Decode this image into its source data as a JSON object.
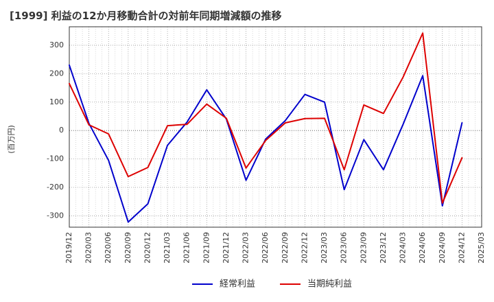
{
  "chart_data": {
    "type": "line",
    "title": "[1999]  利益の12か月移動合計の対前年同期増減額の推移",
    "xlabel": "",
    "ylabel": "(百万円)",
    "ylim": [
      -340,
      365
    ],
    "yticks": [
      -300,
      -200,
      -100,
      0,
      100,
      200,
      300
    ],
    "grid": true,
    "legend_position": "bottom-center",
    "x": [
      "2019/12",
      "2020/03",
      "2020/06",
      "2020/09",
      "2020/12",
      "2021/03",
      "2021/06",
      "2021/09",
      "2021/12",
      "2022/03",
      "2022/06",
      "2022/09",
      "2022/12",
      "2023/03",
      "2023/06",
      "2023/09",
      "2023/12",
      "2024/03",
      "2024/06",
      "2024/09",
      "2024/12",
      "2025/03"
    ],
    "series": [
      {
        "name": "経常利益",
        "color": "#0000cc",
        "values": [
          230,
          25,
          -105,
          -322,
          -258,
          -52,
          30,
          143,
          40,
          -175,
          -30,
          35,
          127,
          100,
          -208,
          -32,
          -138,
          22,
          193,
          -265,
          27,
          null
        ]
      },
      {
        "name": "当期純利益",
        "color": "#dd0000",
        "values": [
          165,
          20,
          -12,
          -162,
          -130,
          17,
          22,
          93,
          43,
          -132,
          -35,
          27,
          42,
          43,
          -138,
          90,
          60,
          188,
          343,
          -255,
          -96,
          null
        ]
      }
    ]
  }
}
